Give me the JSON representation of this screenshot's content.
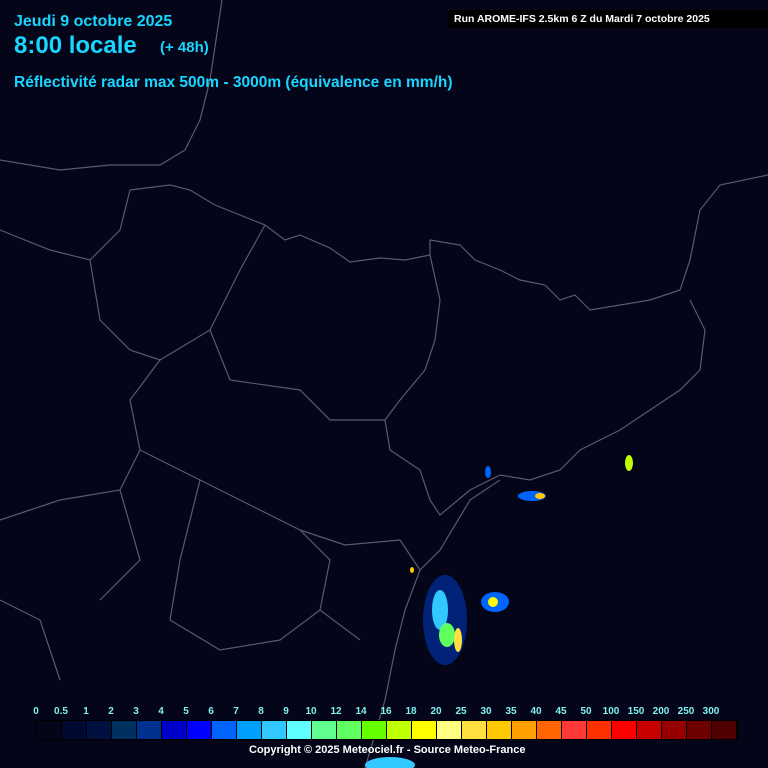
{
  "header": {
    "date": "Jeudi 9 octobre 2025",
    "time": "8:00 locale",
    "lead": "(+ 48h)",
    "parameter": "Réflectivité radar max 500m - 3000m (équivalence en mm/h)",
    "run": "Run AROME-IFS 2.5km 6 Z du Mardi 7 octobre 2025"
  },
  "legend": {
    "labels": [
      "0",
      "0.5",
      "1",
      "2",
      "3",
      "4",
      "5",
      "6",
      "7",
      "8",
      "9",
      "10",
      "12",
      "14",
      "16",
      "18",
      "20",
      "25",
      "30",
      "35",
      "40",
      "45",
      "50",
      "100",
      "150",
      "200",
      "250",
      "300"
    ],
    "colors": [
      "#05051a",
      "#000a30",
      "#001040",
      "#003060",
      "#003090",
      "#0000c8",
      "#0000ff",
      "#0064ff",
      "#00a0ff",
      "#30c8ff",
      "#60ffff",
      "#60ff90",
      "#60ff60",
      "#64ff00",
      "#c0ff00",
      "#ffff00",
      "#ffff80",
      "#ffe040",
      "#ffc800",
      "#ffa000",
      "#ff6400",
      "#ff3838",
      "#ff3000",
      "#ff0000",
      "#c80000",
      "#960000",
      "#6e0000",
      "#500000"
    ]
  },
  "footer": {
    "copyright": "Copyright © 2025 Meteociel.fr - Source Meteo-France"
  },
  "colors": {
    "background": "#05051a",
    "text": "#19d6ff",
    "borders": "#6a6a7a"
  }
}
